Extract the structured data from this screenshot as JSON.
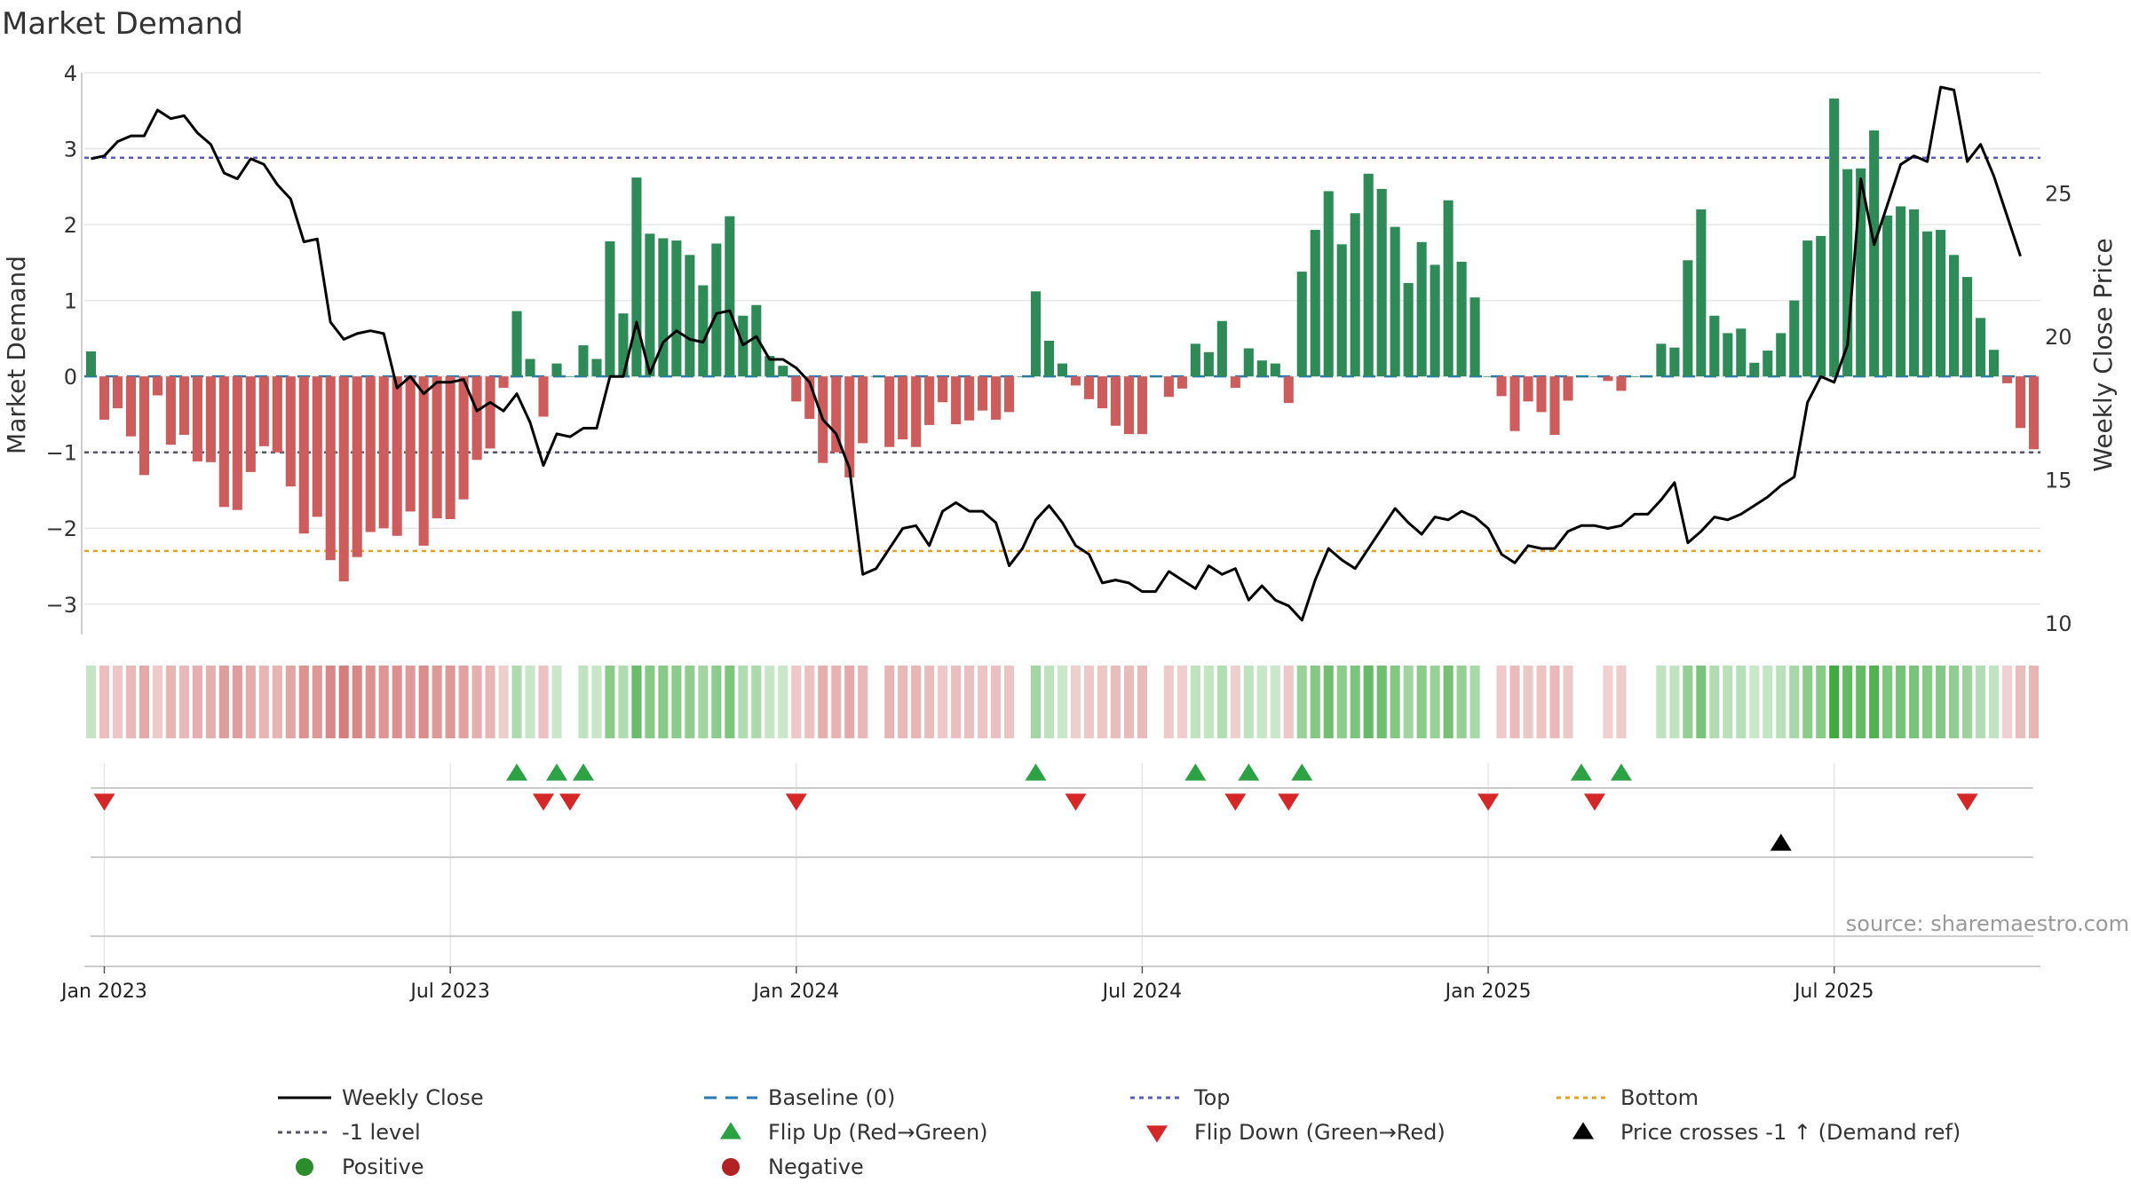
{
  "chart_data": {
    "type": "bar",
    "title": "Market Demand",
    "ylabel": "Market Demand",
    "y2label": "Weekly Close Price",
    "ylim": [
      -3.4,
      4.0
    ],
    "y2lim": [
      9.6,
      29.2
    ],
    "yticks": [
      -3,
      -2,
      -1,
      0,
      1,
      2,
      3,
      4
    ],
    "y2ticks": [
      10,
      15,
      20,
      25
    ],
    "x_ticks": [
      {
        "label": "Jan 2023",
        "week": 0
      },
      {
        "label": "Jul 2023",
        "week": 26
      },
      {
        "label": "Jan 2024",
        "week": 52
      },
      {
        "label": "Jul 2024",
        "week": 78
      },
      {
        "label": "Jan 2025",
        "week": 104
      },
      {
        "label": "Jul 2025",
        "week": 130
      }
    ],
    "week_start_offset": -1,
    "demand": [
      0.33,
      -0.57,
      -0.42,
      -0.79,
      -1.3,
      -0.25,
      -0.9,
      -0.77,
      -1.12,
      -1.13,
      -1.72,
      -1.76,
      -1.26,
      -0.92,
      -1.0,
      -1.45,
      -2.07,
      -1.85,
      -2.42,
      -2.7,
      -2.38,
      -2.05,
      -2.0,
      -2.1,
      -1.78,
      -2.23,
      -1.87,
      -1.88,
      -1.62,
      -1.1,
      -0.95,
      -0.15,
      0.86,
      0.23,
      -0.53,
      0.17,
      0.0,
      0.41,
      0.23,
      1.78,
      0.83,
      2.62,
      1.88,
      1.82,
      1.79,
      1.6,
      1.2,
      1.75,
      2.11,
      0.8,
      0.94,
      0.27,
      0.14,
      -0.33,
      -0.56,
      -1.14,
      -1.0,
      -1.33,
      -0.88,
      0.0,
      -0.93,
      -0.83,
      -0.93,
      -0.64,
      -0.34,
      -0.63,
      -0.58,
      -0.45,
      -0.57,
      -0.47,
      0.0,
      1.12,
      0.47,
      0.17,
      -0.12,
      -0.3,
      -0.42,
      -0.65,
      -0.76,
      -0.76,
      0.0,
      -0.27,
      -0.16,
      0.43,
      0.32,
      0.73,
      -0.15,
      0.37,
      0.21,
      0.17,
      -0.35,
      1.38,
      1.93,
      2.44,
      1.74,
      2.15,
      2.67,
      2.47,
      1.97,
      1.23,
      1.77,
      1.47,
      2.32,
      1.51,
      1.04,
      0.0,
      -0.26,
      -0.72,
      -0.33,
      -0.47,
      -0.77,
      -0.32,
      0.0,
      0.0,
      -0.06,
      -0.19,
      0.0,
      0.0,
      0.43,
      0.38,
      1.53,
      2.2,
      0.8,
      0.57,
      0.63,
      0.18,
      0.34,
      0.57,
      1.0,
      1.79,
      1.85,
      3.66,
      2.73,
      2.74,
      3.24,
      2.12,
      2.24,
      2.2,
      1.91,
      1.93,
      1.6,
      1.31,
      0.77,
      0.35,
      -0.09,
      -0.68,
      -0.96
    ],
    "close": [
      26.2,
      26.3,
      26.8,
      27.0,
      27.0,
      27.9,
      27.6,
      27.7,
      27.1,
      26.7,
      25.7,
      25.5,
      26.2,
      26.0,
      25.3,
      24.8,
      23.3,
      23.4,
      20.5,
      19.9,
      20.1,
      20.2,
      20.1,
      18.2,
      18.6,
      18.0,
      18.4,
      18.4,
      18.5,
      17.4,
      17.7,
      17.4,
      18.0,
      17.0,
      15.5,
      16.6,
      16.5,
      16.8,
      16.8,
      18.6,
      18.6,
      20.5,
      18.7,
      19.8,
      20.2,
      19.9,
      19.8,
      20.8,
      20.9,
      19.7,
      20.0,
      19.2,
      19.2,
      18.9,
      18.4,
      17.1,
      16.6,
      15.4,
      11.7,
      11.9,
      12.6,
      13.3,
      13.4,
      12.7,
      13.9,
      14.2,
      13.9,
      13.9,
      13.5,
      12.0,
      12.6,
      13.6,
      14.1,
      13.5,
      12.7,
      12.4,
      11.4,
      11.5,
      11.4,
      11.1,
      11.1,
      11.8,
      11.5,
      11.2,
      12.0,
      11.7,
      11.9,
      10.8,
      11.3,
      10.8,
      10.6,
      10.1,
      11.5,
      12.6,
      12.2,
      11.9,
      12.6,
      13.3,
      14.0,
      13.5,
      13.1,
      13.7,
      13.6,
      13.9,
      13.7,
      13.3,
      12.4,
      12.1,
      12.7,
      12.6,
      12.6,
      13.2,
      13.4,
      13.4,
      13.3,
      13.4,
      13.8,
      13.8,
      14.3,
      14.9,
      12.8,
      13.2,
      13.7,
      13.6,
      13.8,
      14.1,
      14.4,
      14.8,
      15.1,
      17.7,
      18.6,
      18.4,
      19.7,
      25.5,
      23.2,
      24.6,
      26.0,
      26.3,
      26.1,
      28.7,
      28.6,
      26.1,
      26.7,
      25.6,
      24.2,
      22.8
    ],
    "baseline": 0,
    "top": 2.88,
    "bottom": -2.3,
    "level_minus1": -1.0,
    "flip_up_weeks": [
      31,
      34,
      36,
      70,
      82,
      86,
      90,
      111,
      114
    ],
    "flip_down_weeks": [
      0,
      33,
      35,
      52,
      73,
      85,
      89,
      104,
      112,
      140
    ],
    "price_cross_weeks": [
      126
    ],
    "legend": [
      {
        "label": "Weekly Close",
        "kind": "line",
        "color": "#000000"
      },
      {
        "label": "Baseline (0)",
        "kind": "dashed",
        "color": "#2a78b5"
      },
      {
        "label": "Top",
        "kind": "dotted",
        "color": "#5a5bc0"
      },
      {
        "label": "Bottom",
        "kind": "dotted",
        "color": "#e8a020"
      },
      {
        "label": "-1 level",
        "kind": "dotted",
        "color": "#555566"
      },
      {
        "label": "Flip Up (Red→Green)",
        "kind": "tri-up",
        "color": "#2ca245"
      },
      {
        "label": "Flip Down (Green→Red)",
        "kind": "tri-down",
        "color": "#d62728"
      },
      {
        "label": "Price crosses -1 ↑ (Demand ref)",
        "kind": "tri-up",
        "color": "#000000"
      },
      {
        "label": "Positive",
        "kind": "dot",
        "color": "#2b8c2b"
      },
      {
        "label": "Negative",
        "kind": "dot",
        "color": "#b22222"
      }
    ],
    "source": "source: sharemaestro.com"
  },
  "colors": {
    "positive_bar": "#2e8b57",
    "negative_bar": "#cd5c5c",
    "grid": "#e6e6e6"
  }
}
